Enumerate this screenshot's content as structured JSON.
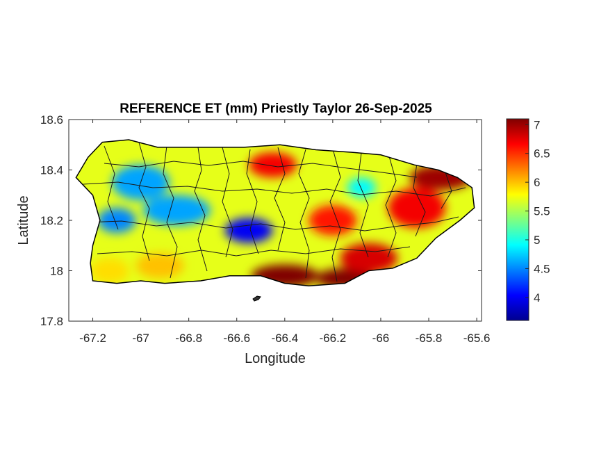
{
  "title": "REFERENCE ET (mm) Priestly Taylor 26-Sep-2025",
  "xlabel": "Longitude",
  "ylabel": "Latitude",
  "x_ticks": [
    "-67.2",
    "-67",
    "-66.8",
    "-66.6",
    "-66.4",
    "-66.2",
    "-66",
    "-65.8",
    "-65.6"
  ],
  "y_ticks": [
    "18.6",
    "18.4",
    "18.2",
    "18",
    "17.8"
  ],
  "colorbar": {
    "ticks": [
      "7",
      "6.5",
      "6",
      "5.5",
      "5",
      "4.5",
      "4"
    ],
    "min": 3.6,
    "max": 7.1,
    "colormap": "jet"
  },
  "chart_data": {
    "type": "heatmap",
    "title": "REFERENCE ET (mm) Priestly Taylor 26-Sep-2025",
    "xlabel": "Longitude",
    "ylabel": "Latitude",
    "xlim": [
      -67.3,
      -65.58
    ],
    "ylim": [
      17.8,
      18.6
    ],
    "x_tick_values": [
      -67.2,
      -67,
      -66.8,
      -66.6,
      -66.4,
      -66.2,
      -66,
      -65.8,
      -65.6
    ],
    "y_tick_values": [
      18.6,
      18.4,
      18.2,
      18,
      17.8
    ],
    "colorbar_range": [
      3.6,
      7.1
    ],
    "colorbar_tick_values": [
      7,
      6.5,
      6,
      5.5,
      5,
      4.5,
      4
    ],
    "units": "mm",
    "grid": false,
    "outline": [
      [
        -67.27,
        18.37
      ],
      [
        -67.22,
        18.45
      ],
      [
        -67.16,
        18.51
      ],
      [
        -67.05,
        18.52
      ],
      [
        -66.93,
        18.49
      ],
      [
        -66.75,
        18.49
      ],
      [
        -66.57,
        18.49
      ],
      [
        -66.42,
        18.5
      ],
      [
        -66.27,
        18.48
      ],
      [
        -66.12,
        18.47
      ],
      [
        -66.0,
        18.46
      ],
      [
        -65.86,
        18.42
      ],
      [
        -65.76,
        18.4
      ],
      [
        -65.68,
        18.37
      ],
      [
        -65.62,
        18.33
      ],
      [
        -65.61,
        18.25
      ],
      [
        -65.67,
        18.2
      ],
      [
        -65.77,
        18.13
      ],
      [
        -65.85,
        18.05
      ],
      [
        -65.95,
        18.01
      ],
      [
        -66.05,
        18.0
      ],
      [
        -66.15,
        17.95
      ],
      [
        -66.3,
        17.94
      ],
      [
        -66.4,
        17.95
      ],
      [
        -66.5,
        17.98
      ],
      [
        -66.63,
        17.98
      ],
      [
        -66.75,
        17.96
      ],
      [
        -66.9,
        17.95
      ],
      [
        -67.0,
        17.96
      ],
      [
        -67.1,
        17.95
      ],
      [
        -67.2,
        17.96
      ],
      [
        -67.21,
        18.03
      ],
      [
        -67.2,
        18.1
      ],
      [
        -67.17,
        18.2
      ],
      [
        -67.2,
        18.3
      ],
      [
        -67.27,
        18.37
      ]
    ],
    "fields": [
      {
        "lon": -66.4,
        "lat": 17.98,
        "value": 7.1,
        "sx": 0.14,
        "sy": 0.045
      },
      {
        "lon": -66.15,
        "lat": 17.97,
        "value": 7.1,
        "sx": 0.12,
        "sy": 0.04
      },
      {
        "lon": -66.05,
        "lat": 18.05,
        "value": 6.8,
        "sx": 0.12,
        "sy": 0.06
      },
      {
        "lon": -65.75,
        "lat": 18.37,
        "value": 7.0,
        "sx": 0.13,
        "sy": 0.05
      },
      {
        "lon": -65.85,
        "lat": 18.25,
        "value": 6.7,
        "sx": 0.12,
        "sy": 0.08
      },
      {
        "lon": -66.45,
        "lat": 18.42,
        "value": 6.7,
        "sx": 0.1,
        "sy": 0.05
      },
      {
        "lon": -66.2,
        "lat": 18.2,
        "value": 6.6,
        "sx": 0.1,
        "sy": 0.06
      },
      {
        "lon": -66.55,
        "lat": 18.16,
        "value": 4.0,
        "sx": 0.1,
        "sy": 0.05
      },
      {
        "lon": -66.85,
        "lat": 18.24,
        "value": 4.6,
        "sx": 0.14,
        "sy": 0.06
      },
      {
        "lon": -67.0,
        "lat": 18.35,
        "value": 4.6,
        "sx": 0.12,
        "sy": 0.07
      },
      {
        "lon": -67.1,
        "lat": 18.2,
        "value": 4.5,
        "sx": 0.08,
        "sy": 0.05
      },
      {
        "lon": -67.13,
        "lat": 18.0,
        "value": 5.9,
        "sx": 0.08,
        "sy": 0.05
      },
      {
        "lon": -66.92,
        "lat": 18.02,
        "value": 6.0,
        "sx": 0.1,
        "sy": 0.05
      },
      {
        "lon": -66.08,
        "lat": 18.33,
        "value": 4.9,
        "sx": 0.06,
        "sy": 0.04
      }
    ]
  }
}
